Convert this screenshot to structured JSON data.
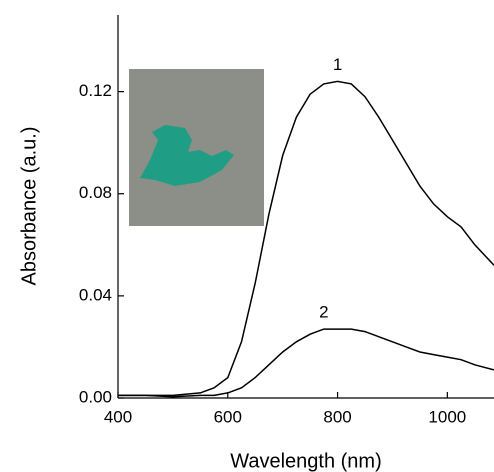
{
  "chart_data": {
    "type": "line",
    "x_label": "Wavelength (nm)",
    "y_label": "Absorbance (a.u.)",
    "x": [
      400,
      450,
      500,
      550,
      575,
      600,
      625,
      650,
      675,
      700,
      725,
      750,
      775,
      800,
      825,
      850,
      875,
      900,
      925,
      950,
      975,
      1000,
      1025,
      1050,
      1085
    ],
    "series": [
      {
        "name": "1",
        "color": "#000000",
        "values": [
          0.001,
          0.001,
          0.001,
          0.002,
          0.004,
          0.008,
          0.022,
          0.045,
          0.072,
          0.095,
          0.11,
          0.119,
          0.123,
          0.124,
          0.123,
          0.118,
          0.11,
          0.101,
          0.092,
          0.083,
          0.076,
          0.071,
          0.067,
          0.06,
          0.052
        ]
      },
      {
        "name": "2",
        "color": "#000000",
        "values": [
          0.001,
          0.001,
          0.0005,
          0.001,
          0.001,
          0.002,
          0.004,
          0.008,
          0.013,
          0.018,
          0.022,
          0.025,
          0.027,
          0.027,
          0.027,
          0.026,
          0.024,
          0.022,
          0.02,
          0.018,
          0.017,
          0.016,
          0.015,
          0.013,
          0.011
        ]
      }
    ],
    "xlim": [
      400,
      1085
    ],
    "ylim": [
      0,
      0.15
    ],
    "xticks": [
      400,
      600,
      800,
      1000
    ],
    "yticks": [
      {
        "value": 0,
        "label": "0.00"
      },
      {
        "value": 0.04,
        "label": "0.04"
      },
      {
        "value": 0.08,
        "label": "0.08"
      },
      {
        "value": 0.12,
        "label": "0.12"
      }
    ]
  }
}
